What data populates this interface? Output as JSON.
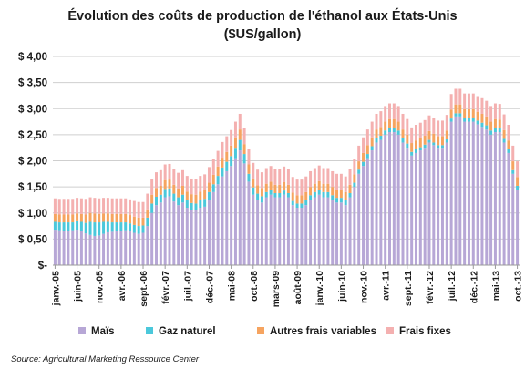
{
  "chart_data": {
    "type": "bar",
    "stacked": true,
    "title": "Évolution des coûts de production de l'éthanol aux États-Unis",
    "subtitle": "($US/gallon)",
    "ylim": [
      0,
      4
    ],
    "y_ticks": [
      "$-",
      "$ 0,50",
      "$ 1,00",
      "$ 1,50",
      "$ 2,00",
      "$ 2,50",
      "$ 3,00",
      "$ 3,50",
      "$ 4,00"
    ],
    "grid": true,
    "legend_position": "bottom",
    "x_tick_labels": [
      "janv.-05",
      "juin-05",
      "nov.-05",
      "avr.-06",
      "sept.-06",
      "févr.-07",
      "juil.-07",
      "déc.-07",
      "mai-08",
      "oct.-08",
      "mars-09",
      "août-09",
      "janv.-10",
      "juin-10",
      "nov.-10",
      "avr.-11",
      "sept.-11",
      "févr.-12",
      "juil.-12",
      "déc.-12",
      "mai-13",
      "oct.-13"
    ],
    "categories": [
      "janv.-05",
      "févr.-05",
      "mars-05",
      "avr.-05",
      "mai-05",
      "juin-05",
      "juil.-05",
      "août-05",
      "sept.-05",
      "oct.-05",
      "nov.-05",
      "déc.-05",
      "janv.-06",
      "févr.-06",
      "mars-06",
      "avr.-06",
      "mai-06",
      "juin-06",
      "juil.-06",
      "août-06",
      "sept.-06",
      "oct.-06",
      "nov.-06",
      "déc.-06",
      "janv.-07",
      "févr.-07",
      "mars-07",
      "avr.-07",
      "mai-07",
      "juin-07",
      "juil.-07",
      "août-07",
      "sept.-07",
      "oct.-07",
      "nov.-07",
      "déc.-07",
      "janv.-08",
      "févr.-08",
      "mars-08",
      "avr.-08",
      "mai-08",
      "juin-08",
      "juil.-08",
      "août-08",
      "sept.-08",
      "oct.-08",
      "nov.-08",
      "déc.-08",
      "janv.-09",
      "févr.-09",
      "mars-09",
      "avr.-09",
      "mai-09",
      "juin-09",
      "juil.-09",
      "août-09",
      "sept.-09",
      "oct.-09",
      "nov.-09",
      "déc.-09",
      "janv.-10",
      "févr.-10",
      "mars-10",
      "avr.-10",
      "mai-10",
      "juin-10",
      "juil.-10",
      "août-10",
      "sept.-10",
      "oct.-10",
      "nov.-10",
      "déc.-10",
      "janv.-11",
      "févr.-11",
      "mars-11",
      "avr.-11",
      "mai-11",
      "juin-11",
      "juil.-11",
      "août-11",
      "sept.-11",
      "oct.-11",
      "nov.-11",
      "déc.-11",
      "janv.-12",
      "févr.-12",
      "mars-12",
      "avr.-12",
      "mai-12",
      "juin-12",
      "juil.-12",
      "août-12",
      "sept.-12",
      "oct.-12",
      "nov.-12",
      "déc.-12",
      "janv.-13",
      "févr.-13",
      "mars-13",
      "avr.-13",
      "mai-13",
      "juin-13",
      "juil.-13",
      "août-13",
      "sept.-13",
      "oct.-13"
    ],
    "series": [
      {
        "name": "Maïs",
        "color": "#b7a7d6",
        "values": [
          0.68,
          0.67,
          0.66,
          0.66,
          0.67,
          0.68,
          0.66,
          0.61,
          0.58,
          0.56,
          0.57,
          0.6,
          0.63,
          0.64,
          0.65,
          0.66,
          0.67,
          0.65,
          0.62,
          0.6,
          0.62,
          0.75,
          1.0,
          1.15,
          1.2,
          1.3,
          1.32,
          1.22,
          1.15,
          1.2,
          1.1,
          1.05,
          1.05,
          1.1,
          1.12,
          1.25,
          1.4,
          1.55,
          1.7,
          1.8,
          1.9,
          2.05,
          2.2,
          1.95,
          1.6,
          1.35,
          1.25,
          1.2,
          1.3,
          1.35,
          1.3,
          1.3,
          1.35,
          1.3,
          1.15,
          1.1,
          1.1,
          1.15,
          1.25,
          1.3,
          1.35,
          1.3,
          1.3,
          1.25,
          1.2,
          1.2,
          1.15,
          1.3,
          1.5,
          1.75,
          1.9,
          2.05,
          2.2,
          2.35,
          2.4,
          2.5,
          2.55,
          2.55,
          2.5,
          2.35,
          2.25,
          2.1,
          2.15,
          2.2,
          2.25,
          2.35,
          2.3,
          2.25,
          2.25,
          2.35,
          2.75,
          2.85,
          2.85,
          2.75,
          2.75,
          2.75,
          2.7,
          2.65,
          2.6,
          2.5,
          2.55,
          2.55,
          2.35,
          2.15,
          1.75,
          1.45
        ]
      },
      {
        "name": "Gaz naturel",
        "color": "#4bc8db",
        "values": [
          0.15,
          0.15,
          0.16,
          0.16,
          0.15,
          0.16,
          0.17,
          0.2,
          0.25,
          0.26,
          0.25,
          0.23,
          0.2,
          0.18,
          0.17,
          0.16,
          0.15,
          0.15,
          0.15,
          0.15,
          0.14,
          0.16,
          0.18,
          0.16,
          0.15,
          0.16,
          0.15,
          0.15,
          0.15,
          0.15,
          0.14,
          0.14,
          0.13,
          0.14,
          0.15,
          0.15,
          0.15,
          0.16,
          0.17,
          0.18,
          0.19,
          0.2,
          0.2,
          0.18,
          0.15,
          0.14,
          0.12,
          0.12,
          0.1,
          0.09,
          0.08,
          0.08,
          0.08,
          0.08,
          0.08,
          0.08,
          0.08,
          0.09,
          0.09,
          0.1,
          0.1,
          0.1,
          0.1,
          0.09,
          0.09,
          0.09,
          0.09,
          0.08,
          0.08,
          0.08,
          0.08,
          0.08,
          0.08,
          0.08,
          0.08,
          0.08,
          0.08,
          0.08,
          0.08,
          0.08,
          0.08,
          0.07,
          0.07,
          0.06,
          0.06,
          0.05,
          0.05,
          0.05,
          0.05,
          0.06,
          0.06,
          0.06,
          0.06,
          0.07,
          0.07,
          0.07,
          0.07,
          0.08,
          0.08,
          0.08,
          0.08,
          0.07,
          0.07,
          0.07,
          0.07,
          0.07
        ]
      },
      {
        "name": "Autres frais variables",
        "color": "#f6a460",
        "values": [
          0.15,
          0.15,
          0.15,
          0.15,
          0.15,
          0.15,
          0.15,
          0.16,
          0.17,
          0.17,
          0.16,
          0.16,
          0.16,
          0.16,
          0.16,
          0.16,
          0.16,
          0.16,
          0.16,
          0.16,
          0.15,
          0.16,
          0.17,
          0.17,
          0.17,
          0.17,
          0.17,
          0.17,
          0.17,
          0.17,
          0.17,
          0.17,
          0.17,
          0.17,
          0.17,
          0.18,
          0.18,
          0.18,
          0.19,
          0.19,
          0.2,
          0.2,
          0.2,
          0.19,
          0.18,
          0.17,
          0.16,
          0.16,
          0.16,
          0.16,
          0.16,
          0.16,
          0.16,
          0.16,
          0.16,
          0.16,
          0.16,
          0.16,
          0.16,
          0.16,
          0.16,
          0.16,
          0.16,
          0.16,
          0.16,
          0.16,
          0.16,
          0.16,
          0.16,
          0.16,
          0.17,
          0.17,
          0.17,
          0.17,
          0.17,
          0.17,
          0.17,
          0.17,
          0.17,
          0.17,
          0.17,
          0.17,
          0.17,
          0.17,
          0.17,
          0.17,
          0.17,
          0.17,
          0.17,
          0.17,
          0.17,
          0.17,
          0.17,
          0.17,
          0.17,
          0.17,
          0.17,
          0.17,
          0.17,
          0.17,
          0.17,
          0.17,
          0.17,
          0.17,
          0.17,
          0.17
        ]
      },
      {
        "name": "Frais fixes",
        "color": "#f4b0b0",
        "values": [
          0.3,
          0.3,
          0.3,
          0.3,
          0.3,
          0.3,
          0.3,
          0.3,
          0.3,
          0.3,
          0.3,
          0.3,
          0.3,
          0.3,
          0.3,
          0.3,
          0.3,
          0.3,
          0.3,
          0.3,
          0.3,
          0.3,
          0.3,
          0.3,
          0.3,
          0.3,
          0.3,
          0.3,
          0.3,
          0.3,
          0.3,
          0.3,
          0.3,
          0.3,
          0.3,
          0.3,
          0.3,
          0.3,
          0.3,
          0.3,
          0.3,
          0.3,
          0.3,
          0.3,
          0.3,
          0.3,
          0.3,
          0.3,
          0.3,
          0.3,
          0.3,
          0.3,
          0.3,
          0.3,
          0.3,
          0.3,
          0.3,
          0.3,
          0.3,
          0.3,
          0.3,
          0.3,
          0.3,
          0.3,
          0.3,
          0.3,
          0.3,
          0.3,
          0.3,
          0.3,
          0.3,
          0.3,
          0.3,
          0.3,
          0.3,
          0.3,
          0.3,
          0.3,
          0.3,
          0.3,
          0.3,
          0.3,
          0.3,
          0.3,
          0.3,
          0.3,
          0.3,
          0.3,
          0.3,
          0.3,
          0.3,
          0.3,
          0.3,
          0.3,
          0.3,
          0.3,
          0.3,
          0.3,
          0.3,
          0.3,
          0.3,
          0.3,
          0.3,
          0.3,
          0.3,
          0.3
        ]
      }
    ]
  },
  "source": "Source: Agricultural Marketing Ressource Center"
}
